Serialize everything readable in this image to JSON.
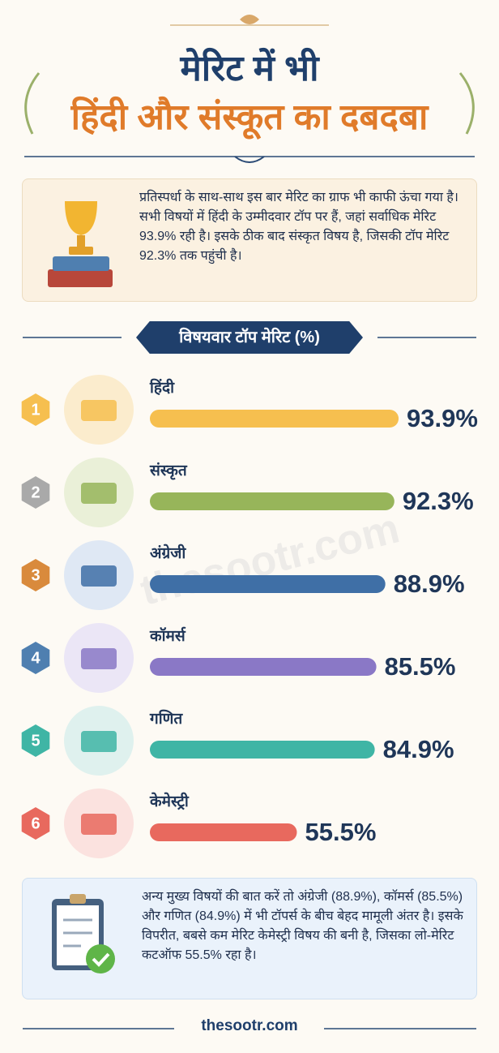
{
  "header": {
    "title_line1": "मेरिट में भी",
    "title_line2": "हिंदी और संस्कूत का दबदबा"
  },
  "intro": "प्रतिस्पर्धा के साथ-साथ इस बार मेरिट का ग्राफ भी काफी ऊंचा गया है। सभी विषयों में हिंदी के उम्मीदवार टॉप पर हैं, जहां सर्वाधिक मेरिट 93.9% रही है। इसके ठीक बाद संस्कृत विषय है, जिसकी टॉप मेरिट 92.3% तक पहुंची है।",
  "chart_data": {
    "type": "bar",
    "orientation": "horizontal",
    "title": "विषयवार टॉप मेरिट (%)",
    "ranks": [
      1,
      2,
      3,
      4,
      5,
      6
    ],
    "categories": [
      "हिंदी",
      "संस्कृत",
      "अंग्रेजी",
      "कॉमर्स",
      "गणित",
      "केमेस्ट्री"
    ],
    "values": [
      93.9,
      92.3,
      88.9,
      85.5,
      84.9,
      55.5
    ],
    "value_labels": [
      "93.9%",
      "92.3%",
      "88.9%",
      "85.5%",
      "84.9%",
      "55.5%"
    ],
    "colors": [
      "#f6bf4f",
      "#97b55a",
      "#3f6fa6",
      "#8a78c6",
      "#3fb5a5",
      "#e8695e"
    ]
  },
  "outro": "अन्य मुख्य विषयों की बात करें तो अंग्रेजी (88.9%), कॉमर्स (85.5%) और गणित (84.9%) में भी टॉपर्स के बीच बेहद मामूली अंतर है। इसके विपरीत, बबसे कम मेरिट केमेस्ट्री विषय की बनी है, जिसका लो-मेरिट कटऑफ 55.5% रहा है।",
  "watermark": "thesootr.com",
  "footer": "thesootr.com"
}
